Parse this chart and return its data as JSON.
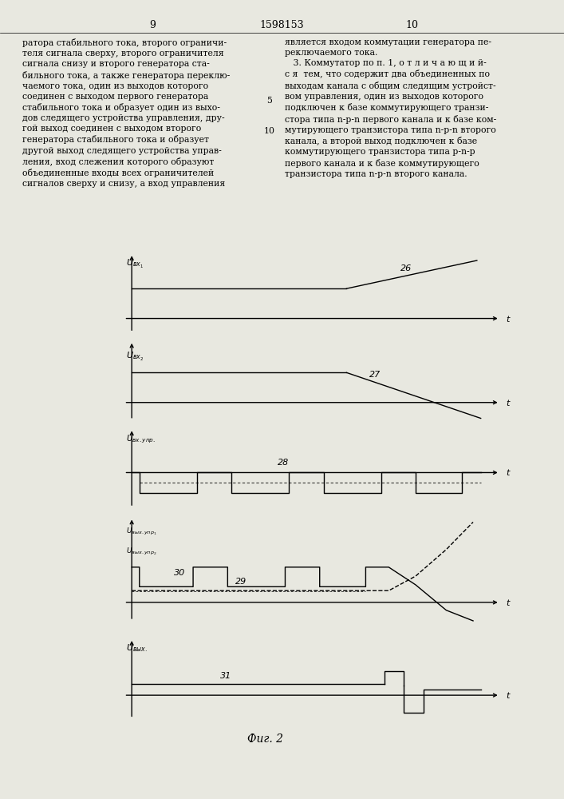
{
  "bg_color": "#e8e8e0",
  "page_num_left": "9",
  "page_num_right": "10",
  "page_center": "1598153",
  "text_left": "ратора стабильного тока, второго ограничи-\nтеля сигнала сверху, второго ограничителя\nсигнала снизу и второго генератора ста-\nбильного тока, а также генератора переклю-\nчаемого тока, один из выходов которого\nсоединен с выходом первого генератора\nстабильного тока и образует один из выхо-\nдов следящего устройства управления, дру-\nгой выход соединен с выходом второго\nгенератора стабильного тока и образует\nдругой выход следящего устройства управ-\nления, вход слежения которого образуют\nобъединенные входы всех ограничителей\nсигналов сверху и снизу, а вход управления",
  "text_right": "является входом коммутации генератора пе-\nреключаемого тока.\n   3. Коммутатор по п. 1, о т л и ч а ю щ и й-\nс я  тем, что содержит два объединенных по\nвыходам канала с общим следящим устройст-\nвом управления, один из выходов которого\nподключен к базе коммутирующего транзи-\nстора типа n-р-n первого канала и к базе ком-\nмутирующего транзистора типа n-р-n второго\nканала, а второй выход подключен к базе\nкоммутирующего транзистора типа р-n-р\nпервого канала и к базе коммутирующего\nтранзистора типа n-р-n второго канала.",
  "line_num_5": "5",
  "line_num_10": "10",
  "fig_caption": "Фиг. 2",
  "lw": 1.0
}
